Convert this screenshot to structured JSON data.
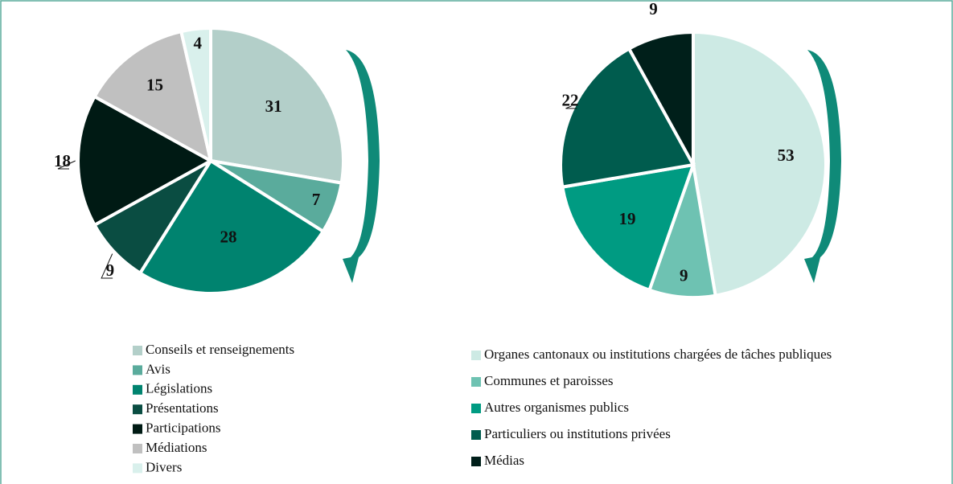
{
  "chart_data": [
    {
      "type": "pie",
      "categories": [
        "Conseils et renseignements",
        "Avis",
        "Législations",
        "Présentations",
        "Participations",
        "Médiations",
        "Divers"
      ],
      "values": [
        31,
        7,
        28,
        9,
        18,
        15,
        4
      ],
      "colors": [
        "#b3cfc9",
        "#5aab9c",
        "#00836f",
        "#0a4d42",
        "#001a14",
        "#c0c0c0",
        "#d9f0ec"
      ]
    },
    {
      "type": "pie",
      "categories": [
        "Organes cantonaux ou institutions chargées de tâches publiques",
        "Communes et paroisses",
        "Autres organismes publics",
        "Particuliers ou institutions privées",
        "Médias"
      ],
      "values": [
        53,
        9,
        19,
        22,
        9
      ],
      "colors": [
        "#cdeae4",
        "#6ec2b2",
        "#009b82",
        "#005c4e",
        "#001f1a"
      ]
    }
  ]
}
